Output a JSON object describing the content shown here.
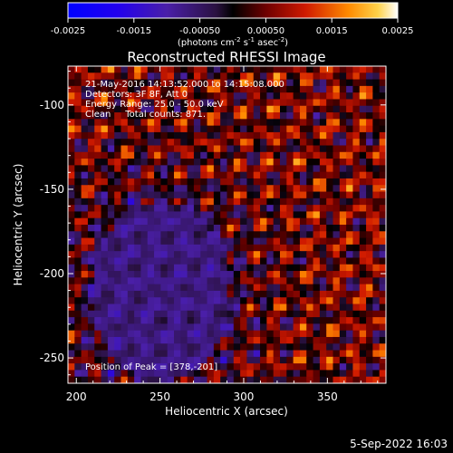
{
  "colorbar": {
    "ticks": [
      "-0.0025",
      "-0.0015",
      "-0.00050",
      "0.00050",
      "0.0015",
      "0.0025"
    ],
    "units_text": "(photons cm",
    "units_exp1": "-2",
    "units_mid": " s",
    "units_exp2": "-1",
    "units_end": " asec",
    "units_exp3": "-2",
    "units_close": ")",
    "range": [
      -0.0025,
      0.0025
    ]
  },
  "chart_data": {
    "type": "heatmap",
    "title": "Reconstructed RHESSI Image",
    "xlabel": "Heliocentric X (arcsec)",
    "ylabel": "Heliocentric Y (arcsec)",
    "xlim": [
      195,
      385
    ],
    "ylim": [
      -265,
      -77
    ],
    "x_ticks": [
      "200",
      "250",
      "300",
      "350"
    ],
    "y_ticks": [
      "-100",
      "-150",
      "-200",
      "-250"
    ],
    "x_tick_values": [
      200,
      250,
      300,
      350
    ],
    "y_tick_values": [
      -100,
      -150,
      -200,
      -250
    ],
    "annotations": [
      "21-May-2016 14:13:52.000 to 14:15:08.000",
      "Detectors: 3F 8F, Att 0",
      "Energy Range: 25.0 - 50.0 keV",
      "Clean     Total counts: 871."
    ],
    "peak_label": "Position of Peak = [378,-201]",
    "peak": [
      378,
      -201
    ],
    "grid": false
  },
  "footer": {
    "date": "5-Sep-2022 16:03"
  }
}
